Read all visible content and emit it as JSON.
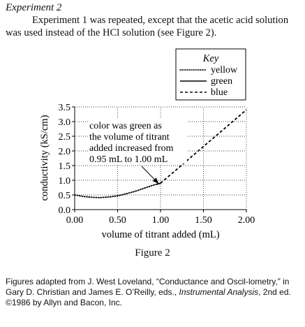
{
  "heading": "Experiment 2",
  "intro": "Experiment 1 was repeated, except that the acetic acid solution was used instead of the HCl solution (see Figure 2).",
  "figure_caption": "Figure 2",
  "source_note": {
    "part1": "Figures adapted from J. West Loveland, “Conductance and Oscil-lometry,” in Gary D. Christian and James E. O’Reilly, eds., ",
    "italic": "Instrumental Analysis",
    "part2": ", 2nd ed. ©1986 by Allyn and Bacon, Inc."
  },
  "chart_data": {
    "type": "line",
    "xlabel": "volume of titrant added (mL)",
    "ylabel": "conductivity (kS/cm)",
    "xlim": [
      0.0,
      2.0
    ],
    "ylim": [
      0.0,
      3.5
    ],
    "x_ticks": [
      0.0,
      0.5,
      1.0,
      1.5,
      2.0
    ],
    "x_tick_labels": [
      "0.00",
      "0.50",
      "1.00",
      "1.50",
      "2.00"
    ],
    "y_ticks": [
      0.0,
      0.5,
      1.0,
      1.5,
      2.0,
      2.5,
      3.0,
      3.5
    ],
    "y_tick_labels": [
      "0.0",
      "0.5",
      "1.0",
      "1.5",
      "2.0",
      "2.5",
      "3.0",
      "3.5"
    ],
    "grid": true,
    "legend": {
      "title": "Key",
      "placement": "top-right",
      "entries": [
        {
          "label": "yellow",
          "style": "dotted"
        },
        {
          "label": "green",
          "style": "solid"
        },
        {
          "label": "blue",
          "style": "dashed"
        }
      ]
    },
    "series": [
      {
        "name": "yellow",
        "style": "dotted",
        "x": [
          0.0,
          0.1,
          0.2,
          0.3,
          0.4,
          0.5,
          0.6,
          0.7,
          0.8,
          0.9,
          0.95
        ],
        "y": [
          0.5,
          0.45,
          0.42,
          0.41,
          0.43,
          0.47,
          0.54,
          0.62,
          0.72,
          0.82,
          0.86
        ]
      },
      {
        "name": "green",
        "style": "solid",
        "x": [
          0.95,
          1.0
        ],
        "y": [
          0.86,
          0.9
        ]
      },
      {
        "name": "blue",
        "style": "dashed",
        "x": [
          1.0,
          2.0
        ],
        "y": [
          0.9,
          3.4
        ]
      }
    ],
    "annotation": {
      "text_lines": [
        "color was green as",
        "the volume of titrant",
        "added increased from",
        "0.95 mL to 1.00 mL"
      ],
      "target": {
        "x": 0.98,
        "y": 0.88
      }
    }
  }
}
